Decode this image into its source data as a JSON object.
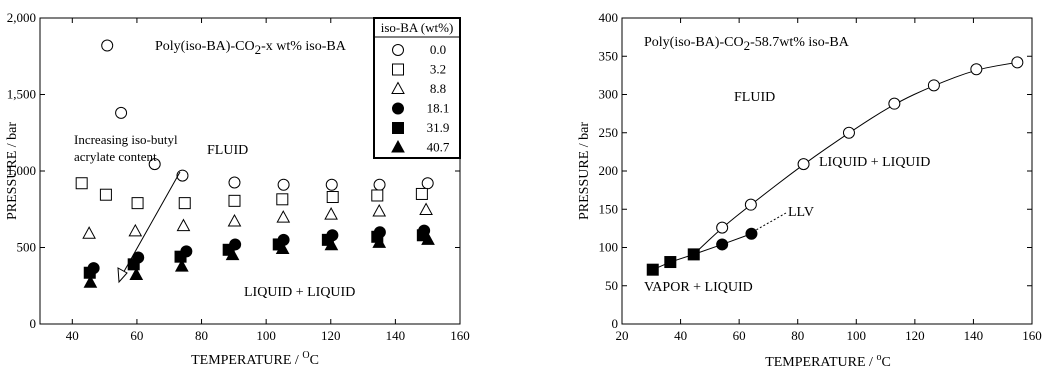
{
  "chart_data": [
    {
      "type": "scatter",
      "title": "",
      "xlabel": "TEMPERATURE / ",
      "xlabel_sup": "O",
      "xlabel_unit": "C",
      "ylabel": "PRESSURE / bar",
      "xlim": [
        30,
        160
      ],
      "ylim": [
        0,
        2000
      ],
      "xticks": [
        40,
        60,
        80,
        100,
        120,
        140,
        160
      ],
      "yticks": [
        0,
        500,
        1000,
        1500,
        2000
      ],
      "ytick_labels": [
        "0",
        "500",
        "1,000",
        "1,500",
        "2,000"
      ],
      "grid": false,
      "legend_placement": "top-right",
      "legend_title": "iso-BA (wt%)",
      "annotations": {
        "system_pre": "Poly(iso-BA)-CO",
        "system_sub": "2",
        "system_post": "-x wt% iso-BA",
        "fluid": "FLUID",
        "liquid_liquid": "LIQUID + LIQUID",
        "arrow_line1": "Increasing iso-butyl",
        "arrow_line2": "acrylate content"
      },
      "series": [
        {
          "name": "0.0",
          "marker": "circle-open",
          "x": [
            50.8,
            55.1,
            65.5,
            74.1,
            90.2,
            105.4,
            120.3,
            135.1,
            150.0
          ],
          "y": [
            1820,
            1380,
            1045,
            970,
            925,
            910,
            910,
            910,
            920
          ]
        },
        {
          "name": "3.2",
          "marker": "square-open",
          "x": [
            42.9,
            50.4,
            60.2,
            74.8,
            90.2,
            105.0,
            120.6,
            134.4,
            148.2
          ],
          "y": [
            920,
            845,
            790,
            790,
            805,
            815,
            830,
            840,
            850
          ]
        },
        {
          "name": "8.8",
          "marker": "triangle-open",
          "x": [
            45.2,
            59.5,
            74.4,
            90.2,
            105.3,
            120.1,
            135.0,
            149.5
          ],
          "y": [
            590,
            605,
            640,
            670,
            695,
            715,
            735,
            745
          ]
        },
        {
          "name": "18.1",
          "marker": "circle-filled",
          "x": [
            46.6,
            60.4,
            75.3,
            90.4,
            105.4,
            120.5,
            135.2,
            148.9
          ],
          "y": [
            365,
            435,
            475,
            520,
            550,
            580,
            600,
            610
          ]
        },
        {
          "name": "31.9",
          "marker": "square-filled",
          "x": [
            45.4,
            59.0,
            73.5,
            88.4,
            103.9,
            119.1,
            134.4,
            148.5
          ],
          "y": [
            335,
            390,
            440,
            485,
            520,
            550,
            570,
            580
          ]
        },
        {
          "name": "40.7",
          "marker": "triangle-filled",
          "x": [
            45.6,
            59.8,
            73.9,
            89.6,
            105.1,
            120.2,
            135.0,
            150.1
          ],
          "y": [
            270,
            320,
            375,
            450,
            490,
            515,
            530,
            550
          ]
        }
      ]
    },
    {
      "type": "line",
      "title": "",
      "xlabel": "TEMPERATURE / ",
      "xlabel_sup": "o",
      "xlabel_unit": "C",
      "ylabel": "PRESSURE / bar",
      "xlim": [
        20,
        160
      ],
      "ylim": [
        0,
        400
      ],
      "xticks": [
        20,
        40,
        60,
        80,
        100,
        120,
        140,
        160
      ],
      "yticks": [
        0,
        50,
        100,
        150,
        200,
        250,
        300,
        350,
        400
      ],
      "ytick_labels": [
        "0",
        "50",
        "100",
        "150",
        "200",
        "250",
        "300",
        "350",
        "400"
      ],
      "grid": false,
      "annotations": {
        "system_pre": "Poly(iso-BA)-CO",
        "system_sub": "2",
        "system_post": "-58.7wt% iso-BA",
        "fluid": "FLUID",
        "liquid_liquid": "LIQUID + LIQUID",
        "llv": "LLV",
        "vapor_liquid": "VAPOR + LIQUID"
      },
      "series": [
        {
          "marker": "circle-open",
          "x": [
            54.2,
            64.0,
            82.0,
            97.5,
            113.0,
            126.5,
            141.0,
            155.0
          ],
          "y": [
            126,
            156,
            209,
            250,
            288,
            312,
            333,
            342
          ]
        },
        {
          "marker": "circle-filled",
          "x": [
            54.2,
            64.2
          ],
          "y": [
            104,
            118
          ]
        },
        {
          "marker": "square-filled",
          "x": [
            30.5,
            36.5,
            44.5
          ],
          "y": [
            71,
            81,
            91
          ]
        }
      ]
    }
  ]
}
